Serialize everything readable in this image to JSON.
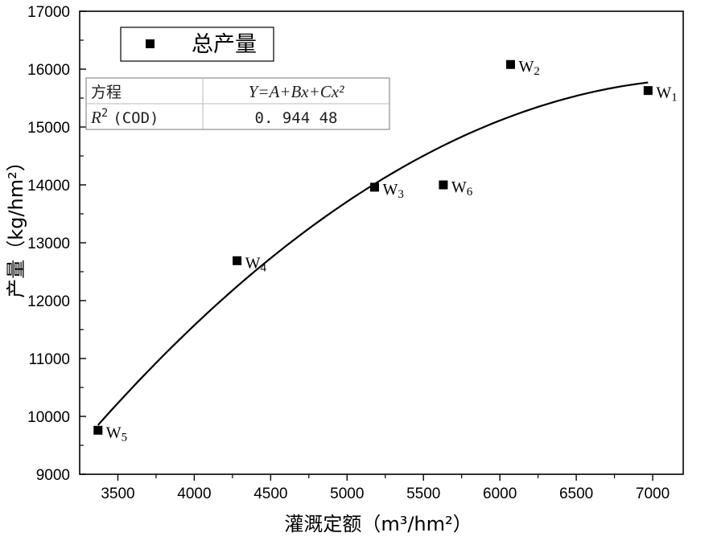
{
  "chart_data": {
    "type": "scatter",
    "xlabel": "灌溉定额（m³/hm²）",
    "ylabel": "产量（kg/hm²）",
    "xlim": [
      3250,
      7200
    ],
    "ylim": [
      9000,
      17000
    ],
    "x_ticks": [
      3500,
      4000,
      4500,
      5000,
      5500,
      6000,
      6500,
      7000
    ],
    "y_ticks": [
      9000,
      10000,
      11000,
      12000,
      13000,
      14000,
      15000,
      16000,
      17000
    ],
    "legend": {
      "label": "总产量",
      "position": "top-left"
    },
    "series": [
      {
        "name": "总产量",
        "points": [
          {
            "label": "W",
            "sub": "1",
            "x": 6970,
            "y": 15630
          },
          {
            "label": "W",
            "sub": "2",
            "x": 6070,
            "y": 16080
          },
          {
            "label": "W",
            "sub": "3",
            "x": 5180,
            "y": 13960
          },
          {
            "label": "W",
            "sub": "4",
            "x": 4280,
            "y": 12690
          },
          {
            "label": "W",
            "sub": "5",
            "x": 3370,
            "y": 9760
          },
          {
            "label": "W",
            "sub": "6",
            "x": 5630,
            "y": 14000
          }
        ]
      }
    ],
    "fit": {
      "type": "quadratic",
      "x_range": [
        3370,
        6970
      ],
      "curve": [
        {
          "x": 3370,
          "y": 9850
        },
        {
          "x": 4270,
          "y": 12300
        },
        {
          "x": 5170,
          "y": 14000
        },
        {
          "x": 6070,
          "y": 15200
        },
        {
          "x": 6970,
          "y": 15770
        }
      ]
    },
    "stats_table": {
      "row1_label": "方程",
      "row1_value": "Y=A+Bx+Cx²",
      "row2_label_main": "R",
      "row2_label_sup": "2",
      "row2_label_rest": "(COD)",
      "row2_value": "0. 944 48"
    },
    "grid": false
  }
}
